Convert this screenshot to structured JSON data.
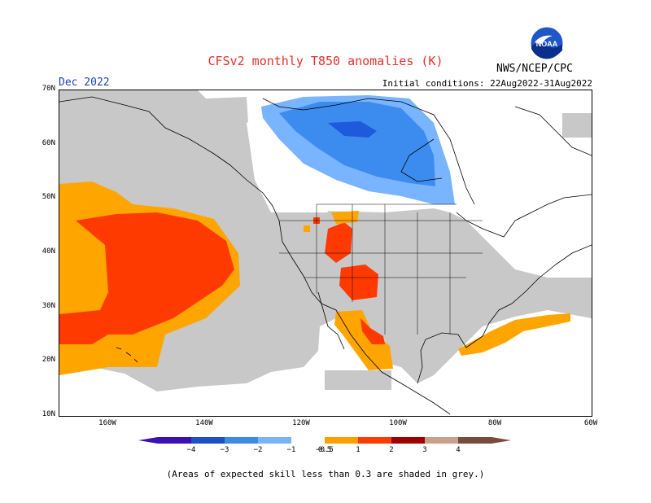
{
  "header": {
    "title": "CFSv2 monthly T850 anomalies (K)",
    "agency": "NWS/NCEP/CPC",
    "month": "Dec 2022",
    "initial_conditions": "Initial conditions: 22Aug2022-31Aug2022"
  },
  "logo": {
    "text": "NOAA",
    "icon": "noaa-logo"
  },
  "map": {
    "lat_labels": [
      "70N",
      "60N",
      "50N",
      "40N",
      "30N",
      "20N",
      "10N"
    ],
    "lon_labels": [
      "160W",
      "140W",
      "120W",
      "100W",
      "80W",
      "60W"
    ],
    "colors": {
      "land_low_skill": "#c8c8c8",
      "warm_0_5": "#ffa500",
      "warm_1": "#ff3a00",
      "warm_2": "#b60000",
      "cold_0_5": "#78b4ff",
      "cold_1": "#3c8cf0",
      "cold_2": "#1e5adc",
      "coast": "#000000"
    }
  },
  "colorbar": {
    "labels": [
      "−4",
      "−3",
      "−2",
      "−1",
      "−0.5",
      "0.5",
      "1",
      "2",
      "3",
      "4"
    ],
    "colors": [
      "#3c10b4",
      "#1e50c8",
      "#3c8ce6",
      "#78b4f8",
      "#ffffff",
      "#ffa000",
      "#ff3c00",
      "#a00000",
      "#c8a08c",
      "#7a4a3c"
    ]
  },
  "footnote": "(Areas of expected skill less than 0.3 are shaded in grey.)"
}
